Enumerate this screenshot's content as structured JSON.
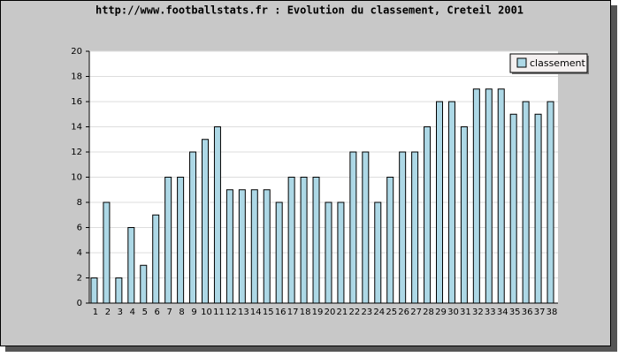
{
  "chart_data": {
    "type": "bar",
    "title": "http://www.footballstats.fr : Evolution du classement, Creteil 2001",
    "categories": [
      "1",
      "2",
      "3",
      "4",
      "5",
      "6",
      "7",
      "8",
      "9",
      "10",
      "11",
      "12",
      "13",
      "14",
      "15",
      "16",
      "17",
      "18",
      "19",
      "20",
      "21",
      "22",
      "23",
      "24",
      "25",
      "26",
      "27",
      "28",
      "29",
      "30",
      "31",
      "32",
      "33",
      "34",
      "35",
      "36",
      "37",
      "38"
    ],
    "series": [
      {
        "name": "classement",
        "color": "#add8e6",
        "values": [
          2,
          8,
          2,
          6,
          3,
          7,
          10,
          10,
          12,
          13,
          14,
          9,
          9,
          9,
          9,
          8,
          10,
          10,
          10,
          8,
          8,
          12,
          12,
          8,
          10,
          12,
          12,
          14,
          16,
          16,
          14,
          17,
          17,
          17,
          15,
          16,
          15,
          16
        ]
      }
    ],
    "ylim": [
      0,
      20
    ],
    "yticks": [
      0,
      2,
      4,
      6,
      8,
      10,
      12,
      14,
      16,
      18,
      20
    ],
    "grid": true,
    "legend": "top-right"
  }
}
